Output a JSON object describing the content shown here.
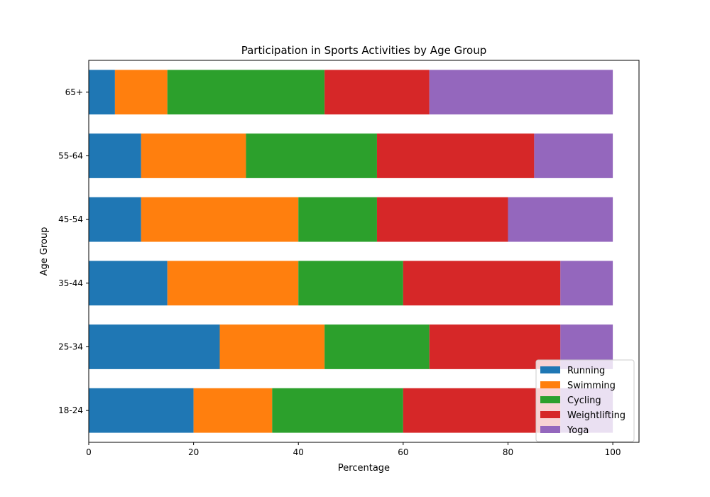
{
  "chart_data": {
    "type": "bar",
    "orientation": "horizontal",
    "stacked": true,
    "title": "Participation in Sports Activities by Age Group",
    "xlabel": "Percentage",
    "ylabel": "Age Group",
    "xlim": [
      0,
      105
    ],
    "xticks": [
      0,
      20,
      40,
      60,
      80,
      100
    ],
    "categories": [
      "18-24",
      "25-34",
      "35-44",
      "45-54",
      "55-64",
      "65+"
    ],
    "series": [
      {
        "name": "Running",
        "color": "#1f77b4",
        "values": [
          20,
          25,
          15,
          10,
          10,
          5
        ]
      },
      {
        "name": "Swimming",
        "color": "#ff7f0e",
        "values": [
          15,
          20,
          25,
          30,
          20,
          10
        ]
      },
      {
        "name": "Cycling",
        "color": "#2ca02c",
        "values": [
          25,
          20,
          20,
          15,
          25,
          30
        ]
      },
      {
        "name": "Weightlifting",
        "color": "#d62728",
        "values": [
          30,
          25,
          30,
          25,
          30,
          20
        ]
      },
      {
        "name": "Yoga",
        "color": "#9467bd",
        "values": [
          10,
          10,
          10,
          20,
          15,
          35
        ]
      }
    ],
    "grid": false,
    "legend_position": "lower-right"
  }
}
